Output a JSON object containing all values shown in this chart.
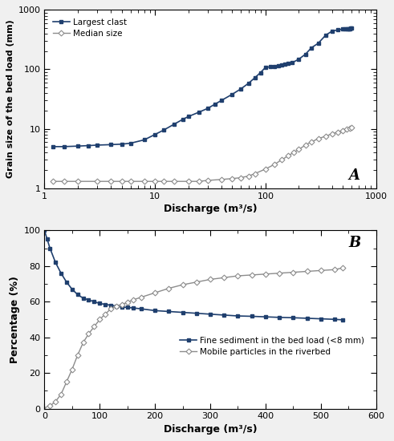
{
  "panel_A": {
    "largest_clast_x": [
      1.2,
      1.5,
      2.0,
      2.5,
      3.0,
      4.0,
      5.0,
      6.0,
      8.0,
      10,
      12,
      15,
      18,
      20,
      25,
      30,
      35,
      40,
      50,
      60,
      70,
      80,
      90,
      100,
      110,
      120,
      130,
      140,
      150,
      160,
      175,
      200,
      230,
      260,
      300,
      350,
      400,
      450,
      500,
      520,
      540,
      560,
      570,
      580,
      590,
      600
    ],
    "largest_clast_y": [
      5.0,
      5.0,
      5.1,
      5.2,
      5.3,
      5.4,
      5.5,
      5.7,
      6.5,
      8.0,
      9.5,
      12,
      14.5,
      16,
      19,
      22,
      26,
      30,
      38,
      47,
      58,
      72,
      88,
      108,
      110,
      112,
      115,
      118,
      121,
      125,
      130,
      148,
      180,
      230,
      275,
      375,
      440,
      460,
      475,
      480,
      482,
      484,
      485,
      486,
      487,
      488
    ],
    "median_x": [
      1.2,
      1.5,
      2.0,
      3.0,
      4.0,
      5.0,
      6.0,
      8.0,
      10,
      12,
      15,
      20,
      25,
      30,
      40,
      50,
      60,
      70,
      80,
      100,
      120,
      140,
      160,
      180,
      200,
      230,
      260,
      300,
      350,
      400,
      450,
      500,
      540,
      580,
      600
    ],
    "median_y": [
      1.3,
      1.3,
      1.3,
      1.3,
      1.3,
      1.3,
      1.3,
      1.3,
      1.3,
      1.3,
      1.3,
      1.3,
      1.3,
      1.35,
      1.4,
      1.45,
      1.5,
      1.6,
      1.75,
      2.1,
      2.5,
      3.0,
      3.5,
      4.0,
      4.5,
      5.3,
      6.0,
      6.8,
      7.5,
      8.2,
      8.8,
      9.4,
      9.8,
      10.2,
      10.5
    ],
    "ylabel": "Grain size of the bed load (mm)",
    "xlabel": "Discharge (m³/s)",
    "ylim": [
      1,
      1000
    ],
    "xlim": [
      1,
      1000
    ],
    "label_A": "A",
    "legend_largest": "Largest clast",
    "legend_median": "Median size",
    "color_largest": "#1f3f6e",
    "color_median": "#8c8c8c",
    "marker_largest": "s",
    "marker_median": "D"
  },
  "panel_B": {
    "fine_sed_x": [
      0,
      5,
      10,
      20,
      30,
      40,
      50,
      60,
      70,
      80,
      90,
      100,
      110,
      120,
      130,
      140,
      150,
      160,
      175,
      200,
      225,
      250,
      275,
      300,
      325,
      350,
      375,
      400,
      425,
      450,
      475,
      500,
      525,
      540
    ],
    "fine_sed_y": [
      100,
      95,
      90,
      82,
      76,
      71,
      67,
      64,
      62,
      61,
      60,
      59,
      58.5,
      58,
      57.5,
      57,
      56.8,
      56.5,
      56,
      55,
      54.5,
      54,
      53.5,
      53,
      52.5,
      52,
      51.8,
      51.5,
      51.2,
      51.0,
      50.7,
      50.4,
      50.1,
      49.8
    ],
    "mobile_x": [
      0,
      5,
      10,
      20,
      30,
      40,
      50,
      60,
      70,
      80,
      90,
      100,
      110,
      120,
      130,
      140,
      150,
      160,
      175,
      200,
      225,
      250,
      275,
      300,
      325,
      350,
      375,
      400,
      425,
      450,
      475,
      500,
      525,
      540
    ],
    "mobile_y": [
      0,
      0.5,
      1.5,
      4.0,
      8,
      15,
      22,
      30,
      37,
      42,
      46,
      50,
      53,
      56,
      57.5,
      58.5,
      59.5,
      61,
      62.5,
      65,
      67.5,
      69.5,
      71,
      72.5,
      73.5,
      74.5,
      75,
      75.5,
      76,
      76.5,
      77,
      77.5,
      78,
      79
    ],
    "ylabel": "Percentage (%)",
    "xlabel": "Discharge (m³/s)",
    "ylim": [
      0,
      100
    ],
    "xlim": [
      0,
      600
    ],
    "label_B": "B",
    "legend_fine": "Fine sediment in the bed load (<8 mm)",
    "legend_mobile": "Mobile particles in the riverbed",
    "color_fine": "#1f3f6e",
    "color_mobile": "#8c8c8c"
  },
  "bg_color": "#f0f0f0",
  "plot_bg": "#ffffff"
}
